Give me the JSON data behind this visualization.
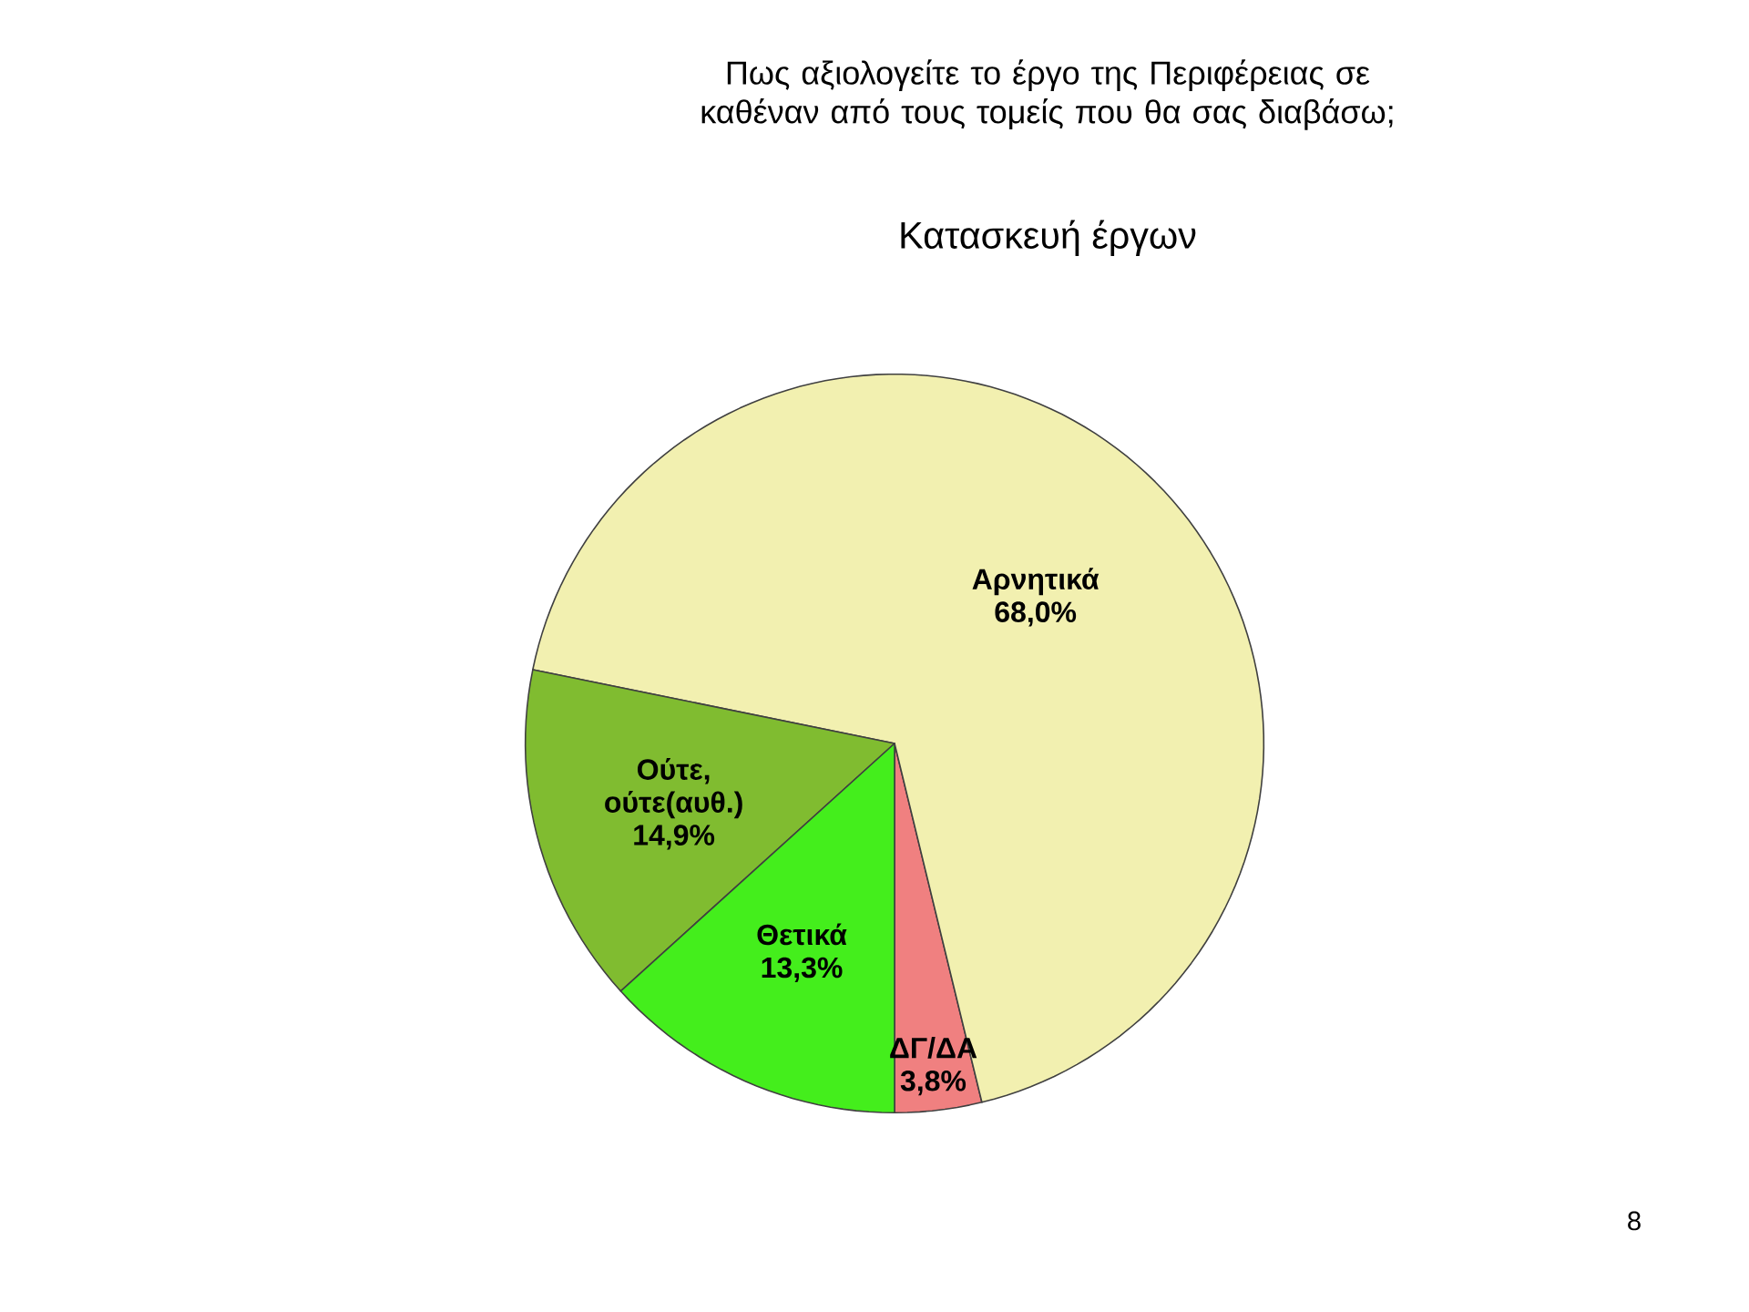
{
  "chart_data": {
    "type": "pie",
    "title": "Πως αξιολογείτε το έργο της Περιφέρειας σε καθέναν από τους τομείς που θα σας διαβάσω;",
    "subtitle": "Κατασκευή έργων",
    "categories": [
      "ΔΓ/ΔΑ",
      "Αρνητικά",
      "Ούτε, ούτε(αυθ.)",
      "Θετικά"
    ],
    "values": [
      3.8,
      68.0,
      14.9,
      13.3
    ],
    "value_labels": [
      "3,8%",
      "68,0%",
      "14,9%",
      "13,3%"
    ],
    "colors": [
      "#f08080",
      "#f2f0b0",
      "#80bc30",
      "#44ee1c"
    ],
    "annotations": [
      "8"
    ]
  }
}
